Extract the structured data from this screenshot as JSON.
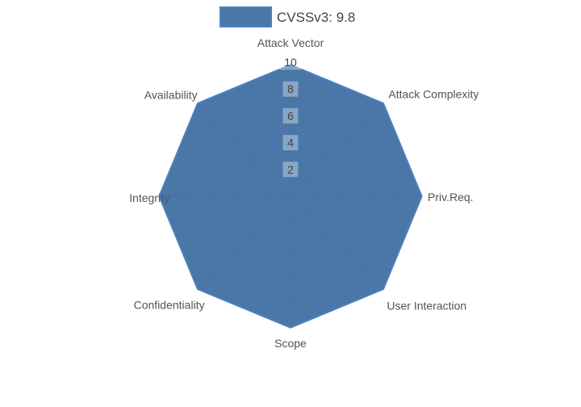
{
  "legend": {
    "label": "CVSSv3: 9.8"
  },
  "chart_data": {
    "type": "radar",
    "title": "",
    "categories": [
      "Attack Vector",
      "Attack Complexity",
      "Priv.Req.",
      "User Interaction",
      "Scope",
      "Confidentiality",
      "Integrity",
      "Availability"
    ],
    "series": [
      {
        "name": "CVSSv3: 9.8",
        "values": [
          9.8,
          9.8,
          9.8,
          9.8,
          9.8,
          9.8,
          9.8,
          9.8
        ]
      }
    ],
    "radial_axis": {
      "range": [
        0,
        10
      ],
      "ticks": [
        2,
        4,
        6,
        8,
        10
      ]
    },
    "grid": true,
    "legend_position": "top-center",
    "colors": {
      "fill": "rgba(54,104,158,0.9)",
      "line": "#4c80bd",
      "grid": "#8b8b8b",
      "tick_box": "rgba(255,255,255,0.35)",
      "tick_text": "#444444",
      "category_text": "#545454",
      "legend_text": "#444444",
      "background": "#ffffff"
    }
  }
}
